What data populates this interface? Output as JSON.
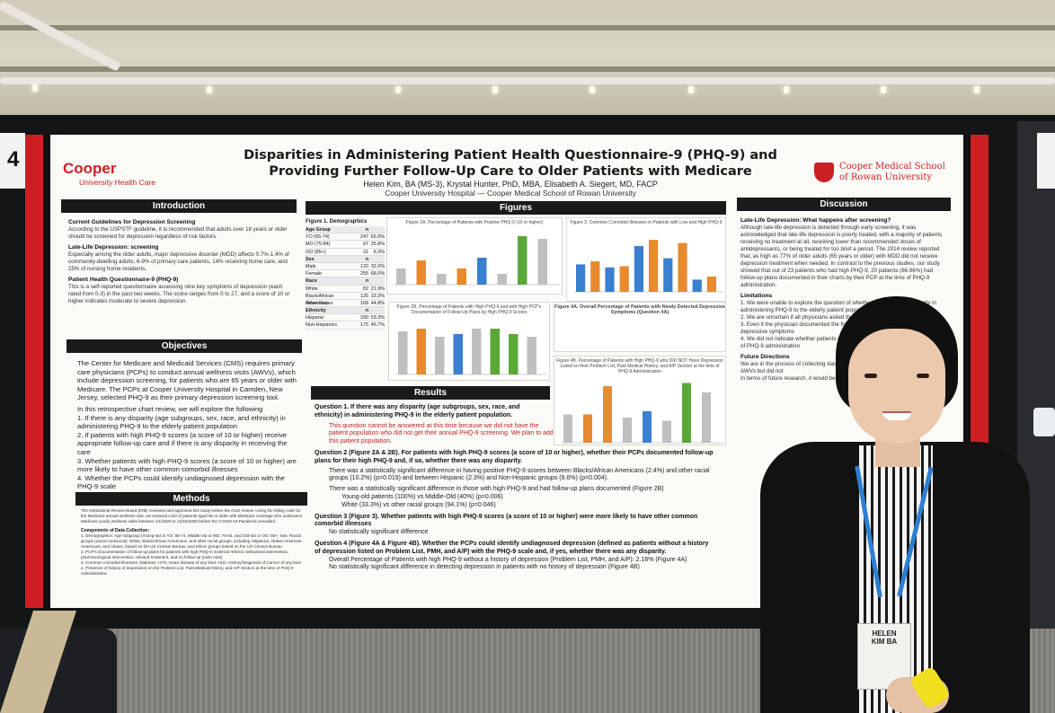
{
  "poster": {
    "title_line1": "Disparities in Administering Patient Health Questionnaire-9 (PHQ-9) and",
    "title_line2": "Providing Further Follow-Up Care to Older Patients with Medicare",
    "authors": "Helen Kim, BA (MS-3), Krystal Hunter, PhD, MBA, Elisabeth A. Siegert, MD, FACP",
    "affiliation": "Cooper University Hospital — Cooper Medical School of Rowan University",
    "logo_left_main": "Cooper",
    "logo_left_sub": "University Health Care",
    "logo_right_line1": "Cooper Medical School",
    "logo_right_line2": "of Rowan University",
    "sections": {
      "introduction": "Introduction",
      "objectives": "Objectives",
      "methods": "Methods",
      "figures": "Figures",
      "results": "Results",
      "discussion": "Discussion"
    },
    "intro": {
      "h1": "Current Guidelines for Depression Screening",
      "p1": "According to the USPSTF guideline, it is recommended that adults over 18 years or older should be screened for depression regardless of risk factors.",
      "h2": "Late-Life Depression: screening",
      "p2": "Especially among the older adults, major depressive disorder (MDD) affects 0.7%-1.4% of community-dwelling adults, 6-9% of primary care patients, 14% receiving home care, and 25% of nursing home residents.",
      "h3": "Patient Health Questionnaire-9 (PHQ-9)",
      "p3": "This is a self-reported questionnaire assessing nine key symptoms of depression (each rated from 0-3) in the past two weeks. The score ranges from 0 to 27, and a score of 10 or higher indicates moderate to severe depression."
    },
    "objectives": {
      "p1": "The Center for Medicare and Medicaid Services (CMS) requires primary care physicians (PCPs) to conduct annual wellness visits (AWVs), which include depression screening, for patients who are 65 years or older with Medicare. The PCPs at Cooper University Hospital in Camden, New Jersey, selected PHQ-9 as their primary depression screening tool.",
      "p2": "In this retrospective chart review, we will explore the following",
      "items": [
        "1. If there is any disparity (age subgroups, sex, race, and ethnicity) in administering PHQ-9 to the elderly patient population",
        "2. If patients with high PHQ-9 scores (a score of 10 or higher) receive appropriate follow-up care and if there is any disparity in receiving the care",
        "3. Whether patients with high PHQ-9 scores (a score of 10 or higher) are more likely to have other common comorbid illnesses",
        "4. Whether the PCPs could identify undiagnosed depression with the PHQ-9 scale"
      ]
    },
    "methods": {
      "p1": "The Institutional Review Board (IRB) reviewed and approved this study before the chart review. Using the billing code for the Medicare annual wellness visit, we ensured a list of patients aged 65 or older with Medicare coverage who underwent Medicare yearly wellness visits between 1/1/2020 to 12/15/2020 before the COVID-19 Pandemic prevailed.",
      "h1": "Components of Data Collection:",
      "items": [
        "1. Demographics: Age subgroup (Young-old or YO: 65-74, Middle-old or MO: 75-84, and Old-old or OO: 85+; Sex; Racial groups (racial constructs): White, Black/African Americans, and other racial groups, including Hispanics, Native American-Americans, and Asians, based on the US Census Bureau; and ethnic groups based on the US Census Bureau",
        "2. PCP's Documentation of follow-up plans for patients with high PHQ-9: External referral, behavioral intervention, pharmacological intervention, refused treatment, and no follow-up (case note)",
        "3. Common comorbid illnesses: Diabetes, HTN, Heart disease of any kind, HLD, History/Diagnosis of Cancer of any kind",
        "4. Presence of history of depression on the Problem List, Past Medical History, and A/P Section at the time of PHQ-9 Administration"
      ]
    },
    "figures": {
      "demo_caption": "Figure 1. Demographics",
      "demo_rows": [
        [
          "Age Group",
          "n",
          ""
        ],
        [
          "YO (65-74)",
          "247",
          "65.9%"
        ],
        [
          "MO (75-84)",
          "97",
          "25.8%"
        ],
        [
          "OO (85+)",
          "31",
          "8.3%"
        ],
        [
          "Sex",
          "n",
          ""
        ],
        [
          "Male",
          "120",
          "32.0%"
        ],
        [
          "Female",
          "255",
          "68.0%"
        ],
        [
          "Race",
          "n",
          ""
        ],
        [
          "White",
          "82",
          "21.9%"
        ],
        [
          "Black/African Americans",
          "125",
          "33.3%"
        ],
        [
          "Other Races",
          "168",
          "44.8%"
        ],
        [
          "Ethnicity",
          "n",
          ""
        ],
        [
          "Hispanic",
          "200",
          "53.3%"
        ],
        [
          "Non-Hispanics",
          "175",
          "46.7%"
        ]
      ],
      "fig2a_caption": "Figure 2A. Percentage of Patients with Positive PHQ-9 (10 or higher)",
      "fig3_caption": "Figure 3. Common Comorbid Illnesses in Patients with Low and High PHQ-9",
      "fig2b_caption": "Figure 2B. Percentage of Patients with High PHQ-9 and with High PCP's Documentation of Follow-Up Plans by High PHQ-9 Scores",
      "fig4a_caption": "Figure 4A. Overall Percentage of Patients with Newly Detected Depressive Symptoms (Question 4A)",
      "fig4b_caption": "Figure 4B. Percentage of Patients with High PHQ-9 who DID NOT Have Depression Listed on their Problem List, Past Medical History, and A/P Section at the time of PHQ-9 Administration"
    },
    "results": {
      "q1": "Question 1. If there was any disparity (age subgroups, sex, race, and ethnicity) in administering PHQ-9 in the elderly patient population.",
      "q1_answer": "This question cannot be answered at this time because we did not have the patient population who did not get their annual PHQ-9 screening. We plan to add this patient population.",
      "q2": "Question 2 (Figure 2A & 2B). For patients with high PHQ-9 scores (a score of 10 or higher), whether their PCPs documented follow-up plans for their high PHQ-9 and, if so, whether there was any disparity.",
      "q2_b1": "There was a statistically significant difference in having positive PHQ-9 scores between Blacks/African Americans (2.4%) and other racial groups (10.2%) (p=0.019) and between Hispanic (2.3%) and Non-Hispanic groups (9.6%) (p=0.004).",
      "q2_b2": "There was a statistically significant difference in those with high PHQ-9 and had follow-up plans documented (Figure 2B)",
      "q2_b2_i1": "Young-old patients (100%) vs Middle-Old (40%) (p=0.006)",
      "q2_b2_i2": "White (33.3%) vs other racial groups (94.1%) (p=0.046)",
      "q3": "Question 3 (Figure 3). Whether patients with high PHQ-9 scores (a score of 10 or higher) were more likely to have other common comorbid illnesses",
      "q3_b1": "No statistically significant difference",
      "q4": "Question 4 (Figure 4A & Figure 4B). Whether the PCPs could identify undiagnosed depression (defined as patients without a history of depression listed on Problem List, PMH, and A/P) with the PHQ-9 scale and, if yes, whether there was any disparity.",
      "q4_b1": "Overall Percentage of Patients with high PHQ-9 without a history of depression (Problem List, PMH, and A/P): 2.16% (Figure 4A)",
      "q4_b2": "No statistically significant difference in detecting depression in patients with no history of depression (Figure 4B)"
    },
    "discussion": {
      "h1": "Late-Life Depression: What happens after screening?",
      "p1": "Although late-life depression is detected through early screening, it was acknowledged that late-life depression is poorly treated, with a majority of patients receiving no treatment at all, receiving lower than recommended doses of antidepressants, or being treated for too brief a period. The 2014 review reported that, as high as 77% of older adults (65 years or older) with MDD did not receive depression treatment when needed. In contrast to the previous studies, our study showed that out of 23 patients who had high PHQ-9, 20 patients (86.96%) had follow-up plans documented in their charts by their PCP at the time of PHQ-9 administration.",
      "h2": "Limitations",
      "lim": [
        "1. We were unable to explore the question of whether there was any disparity in administering PHQ-9 to the elderly patient population",
        "2. We are uncertain if all physicians asked the PHQ-9 questions verbatim.",
        "3. Even if the physician documented the follow-up plan, we are uncertain patients' depressive symptoms",
        "4. We did not indicate whether patients with high PHQ-9 had depression at the time of PHQ-9 administration"
      ],
      "h3": "Future Directions",
      "fut": [
        "We are in the process of collecting data on patients who were supposed to get their AWVs but did not",
        "In terms of future research, it would be useful to expand the findings by the following"
      ]
    },
    "person_badge_line1": "HELEN",
    "person_badge_line2": "KIM BA"
  },
  "colors": {
    "cooper_red": "#cc1f24",
    "header_black": "#1a1a1a",
    "bar_blue": "#3a7fd0",
    "bar_orange": "#e88a2e",
    "bar_green": "#5aa838",
    "bar_gray": "#bfbfbf"
  }
}
